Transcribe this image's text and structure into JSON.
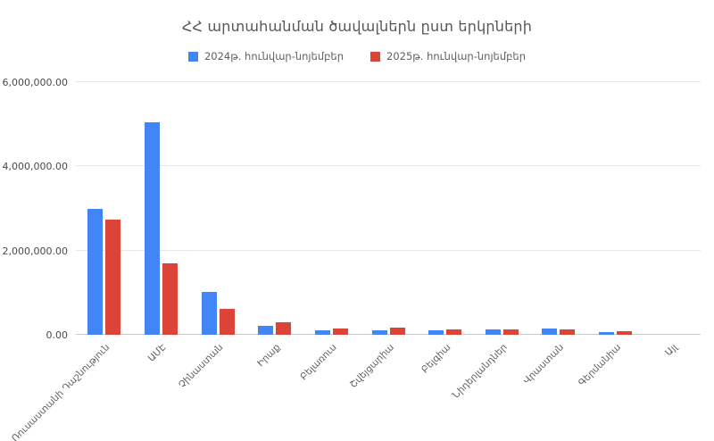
{
  "chart_data": {
    "type": "bar",
    "title": "ՀՀ արտահանման ծավալներն ըստ երկրների",
    "categories": [
      "Ռուսաստանի Դաշնություն",
      "ԱՄԷ",
      "Չինաստան",
      "Իրաք",
      "Բելառուս",
      "Շվեյցարիա",
      "Բելգիա",
      "Նիդերլանդներ",
      "Վրաստան",
      "Գերմանիա",
      "Այլ"
    ],
    "series": [
      {
        "name": "2024թ. հունվար-նոյեմբեր",
        "color": "#4285f4",
        "values": [
          3000000,
          5050000,
          1020000,
          215000,
          110000,
          110000,
          100000,
          125000,
          150000,
          55000,
          0
        ]
      },
      {
        "name": "2025թ. հունվար-նոյեմբեր",
        "color": "#db4437",
        "values": [
          2730000,
          1690000,
          620000,
          300000,
          150000,
          160000,
          120000,
          125000,
          120000,
          95000,
          0
        ]
      }
    ],
    "ylim": [
      0,
      6000000
    ],
    "y_ticks": [
      {
        "value": 0,
        "label": "0.00"
      },
      {
        "value": 2000000,
        "label": "2,000,000.00"
      },
      {
        "value": 4000000,
        "label": "4,000,000.00"
      },
      {
        "value": 6000000,
        "label": "6,000,000.00"
      }
    ],
    "grid": true,
    "legend_position": "top",
    "xlabel": "",
    "ylabel": ""
  }
}
